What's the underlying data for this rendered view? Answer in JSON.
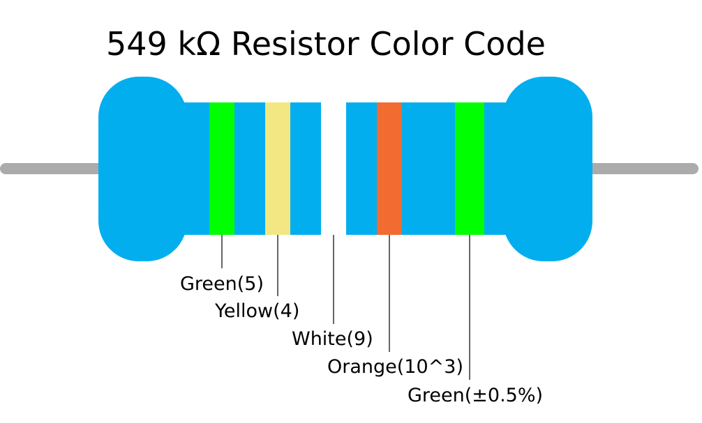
{
  "title": "549 kΩ Resistor Color Code",
  "colors": {
    "body": "#03AEEF",
    "lead": "#ABABAB",
    "leader_line": "#000000"
  },
  "bands": [
    {
      "color_name": "Green",
      "label": "Green(5)",
      "hex": "#00FF00"
    },
    {
      "color_name": "Yellow",
      "label": "Yellow(4)",
      "hex": "#F2E782"
    },
    {
      "color_name": "White",
      "label": "White(9)",
      "hex": "#FFFFFF"
    },
    {
      "color_name": "Orange",
      "label": "Orange(10^3)",
      "hex": "#F26B31"
    },
    {
      "color_name": "Green",
      "label": "Green(±0.5%)",
      "hex": "#00FF00"
    }
  ]
}
